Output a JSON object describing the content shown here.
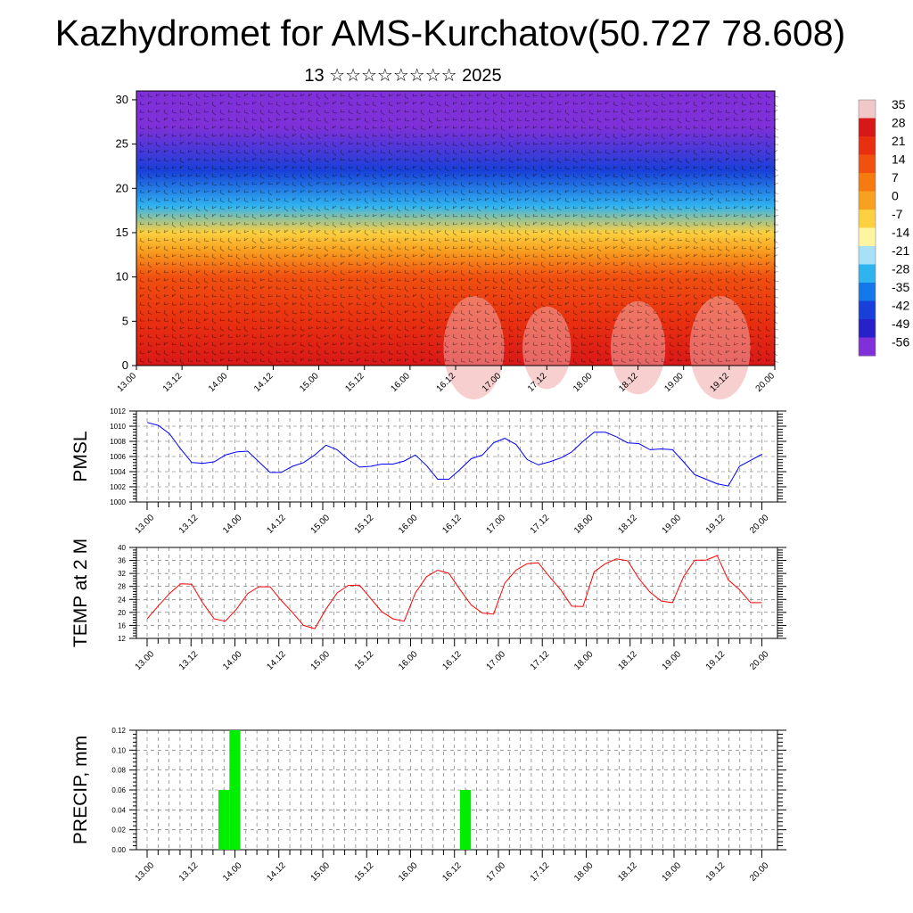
{
  "title": "Kazhydromet for AMS-Kurchatov(50.727 78.608)",
  "subtitle": "13 ☆☆☆☆☆☆☆☆ 2025",
  "colorbar": {
    "labels": [
      "35",
      "28",
      "21",
      "14",
      "7",
      "0",
      "-7",
      "-14",
      "-21",
      "-28",
      "-35",
      "-42",
      "-49",
      "-56"
    ],
    "colors": [
      "#f0c8c8",
      "#d81818",
      "#e83010",
      "#f05010",
      "#f57a10",
      "#f8a020",
      "#fcd040",
      "#fff4a0",
      "#a8e0f8",
      "#30b4f0",
      "#1478e8",
      "#1840d8",
      "#2820c8",
      "#8030d8"
    ]
  },
  "chart_data": [
    {
      "type": "heatmap",
      "xlabel": "",
      "ylabel": "",
      "x_ticks": [
        "13.00",
        "13.12",
        "14.00",
        "14.12",
        "15.00",
        "15.12",
        "16.00",
        "16.12",
        "17.00",
        "17.12",
        "18.00",
        "18.12",
        "19.00",
        "19.12",
        "20.00"
      ],
      "y_ticks": [
        "0",
        "5",
        "10",
        "15",
        "20",
        "25",
        "30"
      ],
      "ylim": [
        0,
        31
      ],
      "value_range": [
        -56,
        35
      ],
      "description_levels": [
        {
          "height": 0,
          "value": 28
        },
        {
          "height": 5,
          "value": 21
        },
        {
          "height": 10,
          "value": 10
        },
        {
          "height": 13,
          "value": 0
        },
        {
          "height": 15,
          "value": -10
        },
        {
          "height": 18,
          "value": -25
        },
        {
          "height": 22,
          "value": -40
        },
        {
          "height": 27,
          "value": -52
        },
        {
          "height": 31,
          "value": -50
        }
      ]
    },
    {
      "type": "line",
      "ylabel": "PMSL",
      "ylim": [
        1000,
        1012
      ],
      "y_ticks": [
        "1000",
        "1002",
        "1004",
        "1006",
        "1008",
        "1010",
        "1012"
      ],
      "x_ticks": [
        "13.00",
        "13.12",
        "14.00",
        "14.12",
        "15.00",
        "15.12",
        "16.00",
        "16.12",
        "17.00",
        "17.12",
        "18.00",
        "18.12",
        "19.00",
        "19.12",
        "20.00"
      ],
      "color": "#0000ff",
      "series": [
        {
          "values": [
            1010.5,
            1010.1,
            1009.0,
            1007.0,
            1005.2,
            1005.1,
            1005.3,
            1006.2,
            1006.6,
            1006.7,
            1005.3,
            1003.9,
            1003.9,
            1004.7,
            1005.2,
            1006.2,
            1007.5,
            1006.9,
            1005.6,
            1004.6,
            1004.7,
            1005.0,
            1005.0,
            1005.4,
            1006.2,
            1004.8,
            1003.0,
            1003.0,
            1004.3,
            1005.7,
            1006.2,
            1007.8,
            1008.4,
            1007.6,
            1005.6,
            1004.9,
            1005.3,
            1005.8,
            1006.6,
            1008.0,
            1009.2,
            1009.2,
            1008.6,
            1007.8,
            1007.7,
            1006.9,
            1007.0,
            1006.9,
            1005.3,
            1003.6,
            1003.0,
            1002.4,
            1002.1,
            1004.7,
            1005.5,
            1006.3
          ]
        }
      ]
    },
    {
      "type": "line",
      "ylabel": "TEMP at 2 M",
      "ylim": [
        12,
        40
      ],
      "y_ticks": [
        "12",
        "16",
        "20",
        "24",
        "28",
        "32",
        "36",
        "40"
      ],
      "x_ticks": [
        "13.00",
        "13.12",
        "14.00",
        "14.12",
        "15.00",
        "15.12",
        "16.00",
        "16.12",
        "17.00",
        "17.12",
        "18.00",
        "18.12",
        "19.00",
        "19.12",
        "20.00"
      ],
      "color": "#ff0000",
      "series": [
        {
          "values": [
            18.0,
            22.0,
            25.8,
            28.8,
            28.7,
            22.8,
            18.0,
            17.3,
            21.0,
            25.8,
            27.9,
            27.9,
            23.7,
            20.0,
            16.0,
            15.0,
            21.0,
            26.0,
            28.3,
            28.4,
            24.3,
            20.2,
            18.0,
            17.3,
            26.0,
            31.0,
            33.0,
            32.0,
            27.0,
            22.3,
            19.8,
            19.5,
            29.0,
            33.0,
            35.0,
            35.3,
            31.0,
            27.0,
            21.9,
            21.8,
            32.5,
            35.0,
            36.5,
            35.9,
            30.4,
            26.2,
            23.5,
            23.0,
            31.0,
            36.1,
            36.1,
            37.5,
            30.0,
            27.0,
            23.0,
            23.0
          ]
        }
      ]
    },
    {
      "type": "bar",
      "ylabel": "PRECIP, mm",
      "ylim": [
        0,
        0.12
      ],
      "y_ticks": [
        "0.00",
        "0.02",
        "0.04",
        "0.06",
        "0.08",
        "0.10",
        "0.12"
      ],
      "x_ticks": [
        "13.00",
        "13.12",
        "14.00",
        "14.12",
        "15.00",
        "15.12",
        "16.00",
        "16.12",
        "17.00",
        "17.12",
        "18.00",
        "18.12",
        "19.00",
        "19.12",
        "20.00"
      ],
      "color": "#00ee00",
      "values": [
        0,
        0,
        0,
        0,
        0,
        0,
        0,
        0.06,
        0.12,
        0,
        0,
        0,
        0,
        0,
        0,
        0,
        0,
        0,
        0,
        0,
        0,
        0,
        0,
        0,
        0,
        0,
        0,
        0,
        0,
        0.06,
        0,
        0,
        0,
        0,
        0,
        0,
        0,
        0,
        0,
        0,
        0,
        0,
        0,
        0,
        0,
        0,
        0,
        0,
        0,
        0,
        0,
        0,
        0,
        0,
        0,
        0
      ]
    }
  ]
}
